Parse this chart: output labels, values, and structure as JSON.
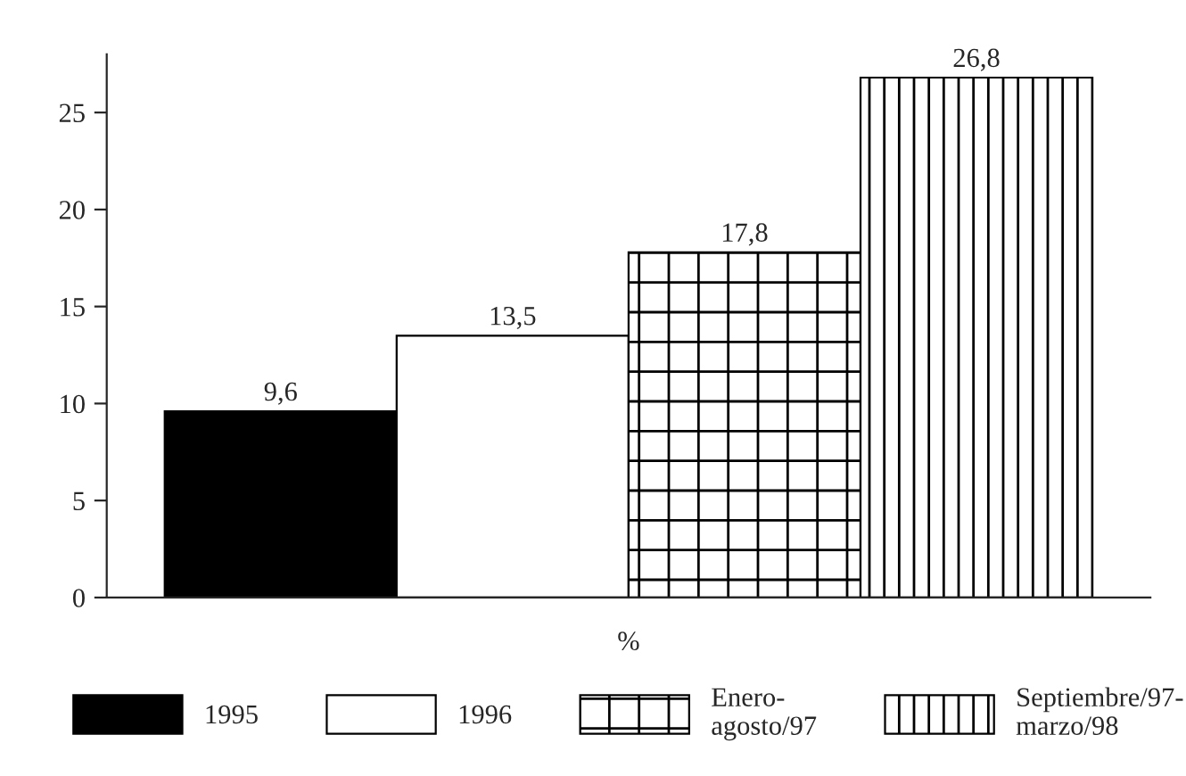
{
  "chart_data": {
    "type": "bar",
    "categories": [
      "%"
    ],
    "series": [
      {
        "name": "1995",
        "color": "#000000",
        "values": [
          9.6
        ],
        "value_labels": [
          "9,6"
        ]
      },
      {
        "name": "1996",
        "color": "#ffffff",
        "values": [
          13.5
        ],
        "value_labels": [
          "13,5"
        ]
      },
      {
        "name": "Enero-\nagosto/97",
        "color": "#ffffff",
        "values": [
          17.8
        ],
        "value_labels": [
          "17,8"
        ]
      },
      {
        "name": "Septiembre/97-\nmarzo/98",
        "color": "#ffffff",
        "values": [
          26.8
        ],
        "value_labels": [
          "26,8"
        ]
      }
    ],
    "ylim": [
      0,
      28
    ],
    "yticks": [
      0,
      5,
      10,
      15,
      20,
      25
    ],
    "grid": false,
    "legend": "bottom"
  }
}
